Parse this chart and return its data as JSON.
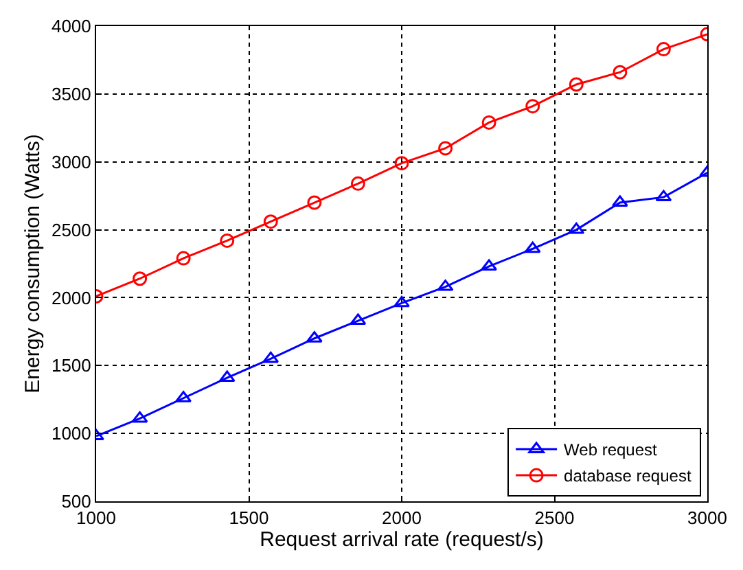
{
  "chart_data": {
    "type": "line",
    "xlabel": "Request arrival rate (request/s)",
    "ylabel": "Energy consumption (Watts)",
    "x": [
      1000,
      1142.9,
      1285.7,
      1428.6,
      1571.4,
      1714.3,
      1857.1,
      2000,
      2142.9,
      2285.7,
      2428.6,
      2571.4,
      2714.3,
      2857.1,
      3000
    ],
    "series": [
      {
        "name": "Web request",
        "color": "#0000ff",
        "marker": "triangle",
        "values": [
          980,
          1110,
          1260,
          1410,
          1550,
          1700,
          1830,
          1960,
          2080,
          2230,
          2360,
          2500,
          2700,
          2740,
          2920
        ]
      },
      {
        "name": "database request",
        "color": "#ff0000",
        "marker": "circle",
        "values": [
          2010,
          2140,
          2290,
          2420,
          2560,
          2700,
          2840,
          2990,
          3100,
          3290,
          3410,
          3570,
          3660,
          3830,
          3940
        ]
      }
    ],
    "xlim": [
      1000,
      3000
    ],
    "xticks": [
      1000,
      1500,
      2000,
      2500,
      3000
    ],
    "ylim": [
      500,
      4000
    ],
    "yticks": [
      500,
      1000,
      1500,
      2000,
      2500,
      3000,
      3500,
      4000
    ],
    "grid": true,
    "legend": "bottom right",
    "line_style": "solid"
  }
}
